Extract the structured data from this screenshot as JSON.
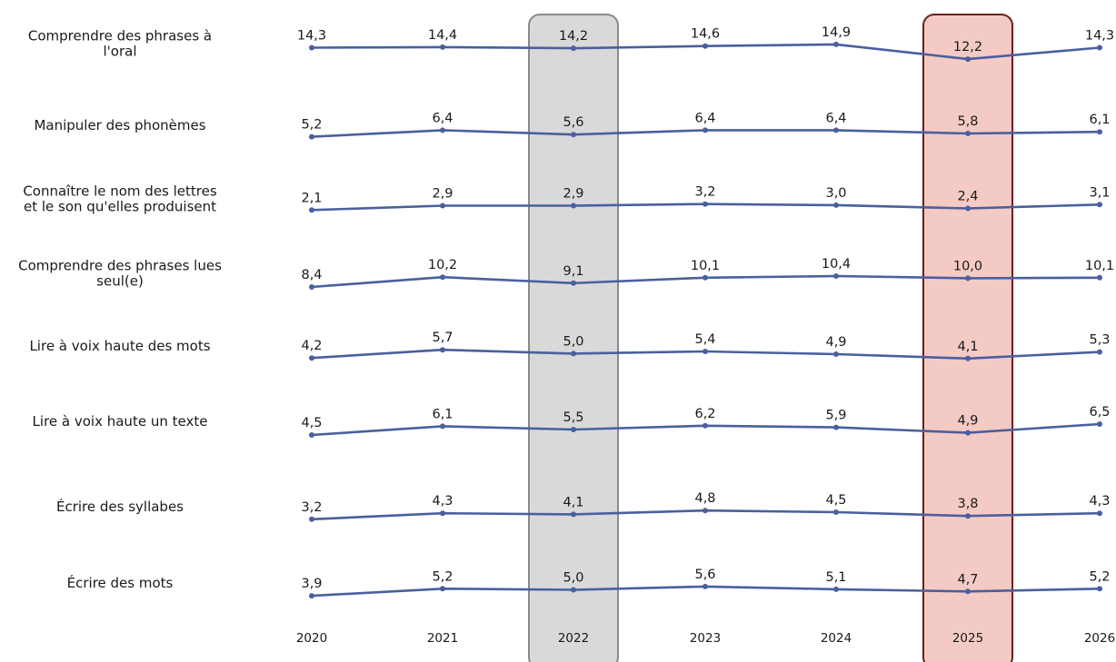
{
  "chart_data": {
    "type": "line",
    "x": [
      "2020",
      "2021",
      "2022",
      "2023",
      "2024",
      "2025",
      "2026"
    ],
    "highlight": [
      {
        "year": "2022",
        "fill": "#d9d9d9",
        "stroke": "#8a8a8a"
      },
      {
        "year": "2025",
        "fill": "#f4cac4",
        "stroke": "#6b1f1f"
      }
    ],
    "line_color": "#4a5f9e",
    "series": [
      {
        "name": "Comprendre des phrases à l'oral",
        "label_lines": [
          "Comprendre des phrases à",
          "l'oral"
        ],
        "values": [
          14.3,
          14.4,
          14.2,
          14.6,
          14.9,
          12.2,
          14.3
        ],
        "labels": [
          "14,3",
          "14,4",
          "14,2",
          "14,6",
          "14,9",
          "12,2",
          "14,3"
        ]
      },
      {
        "name": "Manipuler des phonèmes",
        "label_lines": [
          "Manipuler des phonèmes"
        ],
        "values": [
          5.2,
          6.4,
          5.6,
          6.4,
          6.4,
          5.8,
          6.1
        ],
        "labels": [
          "5,2",
          "6,4",
          "5,6",
          "6,4",
          "6,4",
          "5,8",
          "6,1"
        ]
      },
      {
        "name": "Connaître le nom des lettres et le son qu'elles produisent",
        "label_lines": [
          "Connaître le nom des lettres",
          "et le son qu'elles produisent"
        ],
        "values": [
          2.1,
          2.9,
          2.9,
          3.2,
          3.0,
          2.4,
          3.1
        ],
        "labels": [
          "2,1",
          "2,9",
          "2,9",
          "3,2",
          "3,0",
          "2,4",
          "3,1"
        ]
      },
      {
        "name": "Comprendre des phrases lues seul(e)",
        "label_lines": [
          "Comprendre des phrases lues",
          "seul(e)"
        ],
        "values": [
          8.4,
          10.2,
          9.1,
          10.1,
          10.4,
          10.0,
          10.1
        ],
        "labels": [
          "8,4",
          "10,2",
          "9,1",
          "10,1",
          "10,4",
          "10,0",
          "10,1"
        ]
      },
      {
        "name": "Lire à voix haute des mots",
        "label_lines": [
          "Lire à voix haute des mots"
        ],
        "values": [
          4.2,
          5.7,
          5.0,
          5.4,
          4.9,
          4.1,
          5.3
        ],
        "labels": [
          "4,2",
          "5,7",
          "5,0",
          "5,4",
          "4,9",
          "4,1",
          "5,3"
        ]
      },
      {
        "name": "Lire à voix haute un texte",
        "label_lines": [
          "Lire à voix haute un texte"
        ],
        "values": [
          4.5,
          6.1,
          5.5,
          6.2,
          5.9,
          4.9,
          6.5
        ],
        "labels": [
          "4,5",
          "6,1",
          "5,5",
          "6,2",
          "5,9",
          "4,9",
          "6,5"
        ]
      },
      {
        "name": "Écrire des syllabes",
        "label_lines": [
          "Écrire des syllabes"
        ],
        "values": [
          3.2,
          4.3,
          4.1,
          4.8,
          4.5,
          3.8,
          4.3
        ],
        "labels": [
          "3,2",
          "4,3",
          "4,1",
          "4,8",
          "4,5",
          "3,8",
          "4,3"
        ]
      },
      {
        "name": "Écrire des mots",
        "label_lines": [
          "Écrire des mots"
        ],
        "values": [
          3.9,
          5.2,
          5.0,
          5.6,
          5.1,
          4.7,
          5.2
        ],
        "labels": [
          "3,9",
          "5,2",
          "5,0",
          "5,6",
          "5,1",
          "4,7",
          "5,2"
        ]
      }
    ]
  }
}
